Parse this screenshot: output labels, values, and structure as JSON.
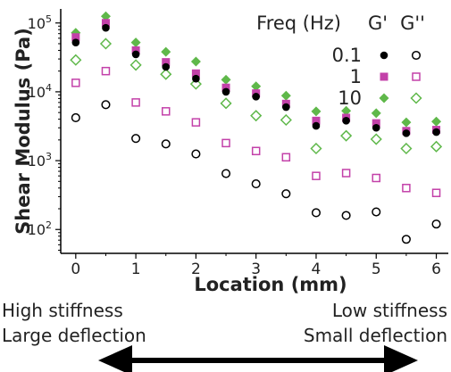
{
  "chart_data": {
    "type": "scatter",
    "xlabel": "Location (mm)",
    "ylabel": "Shear Modulus (Pa)",
    "xlim": [
      -0.25,
      6.2
    ],
    "ylim": [
      45,
      160000
    ],
    "yscale": "log",
    "xticks": [
      "0",
      "1",
      "2",
      "3",
      "4",
      "5",
      "6"
    ],
    "yticks": [
      "10^2",
      "10^3",
      "10^4",
      "10^5"
    ],
    "legend": {
      "title": "Freq (Hz)",
      "col_labels": [
        "G'",
        "G''"
      ],
      "placement": "top-right",
      "rows": [
        "0.1",
        "1",
        "10"
      ]
    },
    "x": [
      0,
      0.5,
      1,
      1.5,
      2,
      2.5,
      3,
      3.5,
      4,
      4.5,
      5,
      5.5,
      6
    ],
    "series": [
      {
        "freq": "0.1",
        "modulus": "G'",
        "color": "#000000",
        "marker": "filled-circle",
        "values": [
          52000,
          85000,
          35000,
          23000,
          15500,
          10000,
          8500,
          6000,
          3200,
          3800,
          3000,
          2500,
          2600
        ]
      },
      {
        "freq": "0.1",
        "modulus": "G''",
        "color": "#000000",
        "marker": "open-circle",
        "values": [
          4200,
          6500,
          2100,
          1750,
          1250,
          650,
          460,
          330,
          175,
          160,
          180,
          72,
          120
        ]
      },
      {
        "freq": "1",
        "modulus": "G'",
        "color": "#c341a9",
        "marker": "filled-square",
        "values": [
          62000,
          100000,
          40000,
          27000,
          18500,
          11500,
          9500,
          6700,
          3800,
          4200,
          3500,
          2700,
          2800
        ]
      },
      {
        "freq": "1",
        "modulus": "G''",
        "color": "#c341a9",
        "marker": "open-square",
        "values": [
          13500,
          20000,
          7000,
          5200,
          3600,
          1800,
          1380,
          1120,
          600,
          660,
          560,
          400,
          340
        ]
      },
      {
        "freq": "10",
        "modulus": "G'",
        "color": "#5fb84a",
        "marker": "filled-diamond",
        "values": [
          72000,
          125000,
          52000,
          38000,
          27500,
          15000,
          12000,
          8800,
          5200,
          5300,
          4900,
          3600,
          3700
        ]
      },
      {
        "freq": "10",
        "modulus": "G''",
        "color": "#5fb84a",
        "marker": "open-diamond",
        "values": [
          29000,
          50000,
          24500,
          18000,
          13000,
          6800,
          4500,
          3900,
          1500,
          2300,
          2050,
          1500,
          1600
        ]
      }
    ]
  },
  "captions": {
    "left_line1": "High stiffness",
    "left_line2": "Large deflection",
    "right_line1": "Low stiffness",
    "right_line2": "Small deflection"
  }
}
